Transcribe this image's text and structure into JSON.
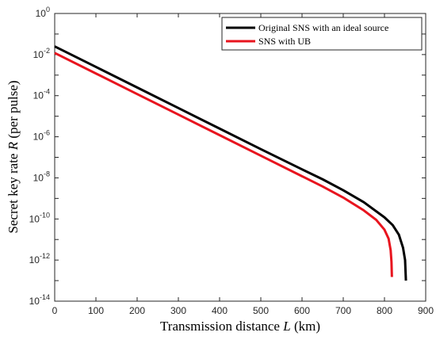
{
  "chart_data": {
    "type": "line",
    "xlabel": "Transmission distance",
    "xlabel_var": "L",
    "xlabel_unit": "(km)",
    "ylabel": "Secret key rate",
    "ylabel_var": "R",
    "ylabel_unit": "(per pulse)",
    "xlim": [
      0,
      900
    ],
    "ylim": [
      1e-14,
      1
    ],
    "y_scale": "log",
    "x_ticks": [
      0,
      100,
      200,
      300,
      400,
      500,
      600,
      700,
      800,
      900
    ],
    "y_ticks": [
      {
        "base": "10",
        "exp": "0"
      },
      {
        "base": "10",
        "exp": "-2"
      },
      {
        "base": "10",
        "exp": "-4"
      },
      {
        "base": "10",
        "exp": "-6"
      },
      {
        "base": "10",
        "exp": "-8"
      },
      {
        "base": "10",
        "exp": "-10"
      },
      {
        "base": "10",
        "exp": "-12"
      },
      {
        "base": "10",
        "exp": "-14"
      }
    ],
    "grid": false,
    "legend_position": "top-right",
    "series": [
      {
        "name": "Original SNS with an ideal source",
        "color": "#000000",
        "points": [
          [
            0,
            0.025
          ],
          [
            100,
            0.0025
          ],
          [
            200,
            0.00025
          ],
          [
            300,
            2.5e-05
          ],
          [
            400,
            2.5e-06
          ],
          [
            500,
            2.5e-07
          ],
          [
            600,
            2.6e-08
          ],
          [
            650,
            8.5e-09
          ],
          [
            700,
            2.5e-09
          ],
          [
            750,
            6.5e-10
          ],
          [
            800,
            1.2e-10
          ],
          [
            820,
            5e-11
          ],
          [
            835,
            1.7e-11
          ],
          [
            845,
            4e-12
          ],
          [
            850,
            1e-12
          ],
          [
            852,
            1e-13
          ]
        ]
      },
      {
        "name": "SNS with UB",
        "color": "#e8141e",
        "points": [
          [
            0,
            0.012
          ],
          [
            100,
            0.0012
          ],
          [
            200,
            0.00012
          ],
          [
            300,
            1.2e-05
          ],
          [
            400,
            1.2e-06
          ],
          [
            500,
            1.2e-07
          ],
          [
            600,
            1.2e-08
          ],
          [
            650,
            3.8e-09
          ],
          [
            700,
            1.1e-09
          ],
          [
            750,
            2.6e-10
          ],
          [
            780,
            9e-11
          ],
          [
            800,
            3e-11
          ],
          [
            810,
            1.1e-11
          ],
          [
            815,
            3e-12
          ],
          [
            817,
            8e-13
          ],
          [
            818,
            1.5e-13
          ]
        ]
      }
    ]
  }
}
